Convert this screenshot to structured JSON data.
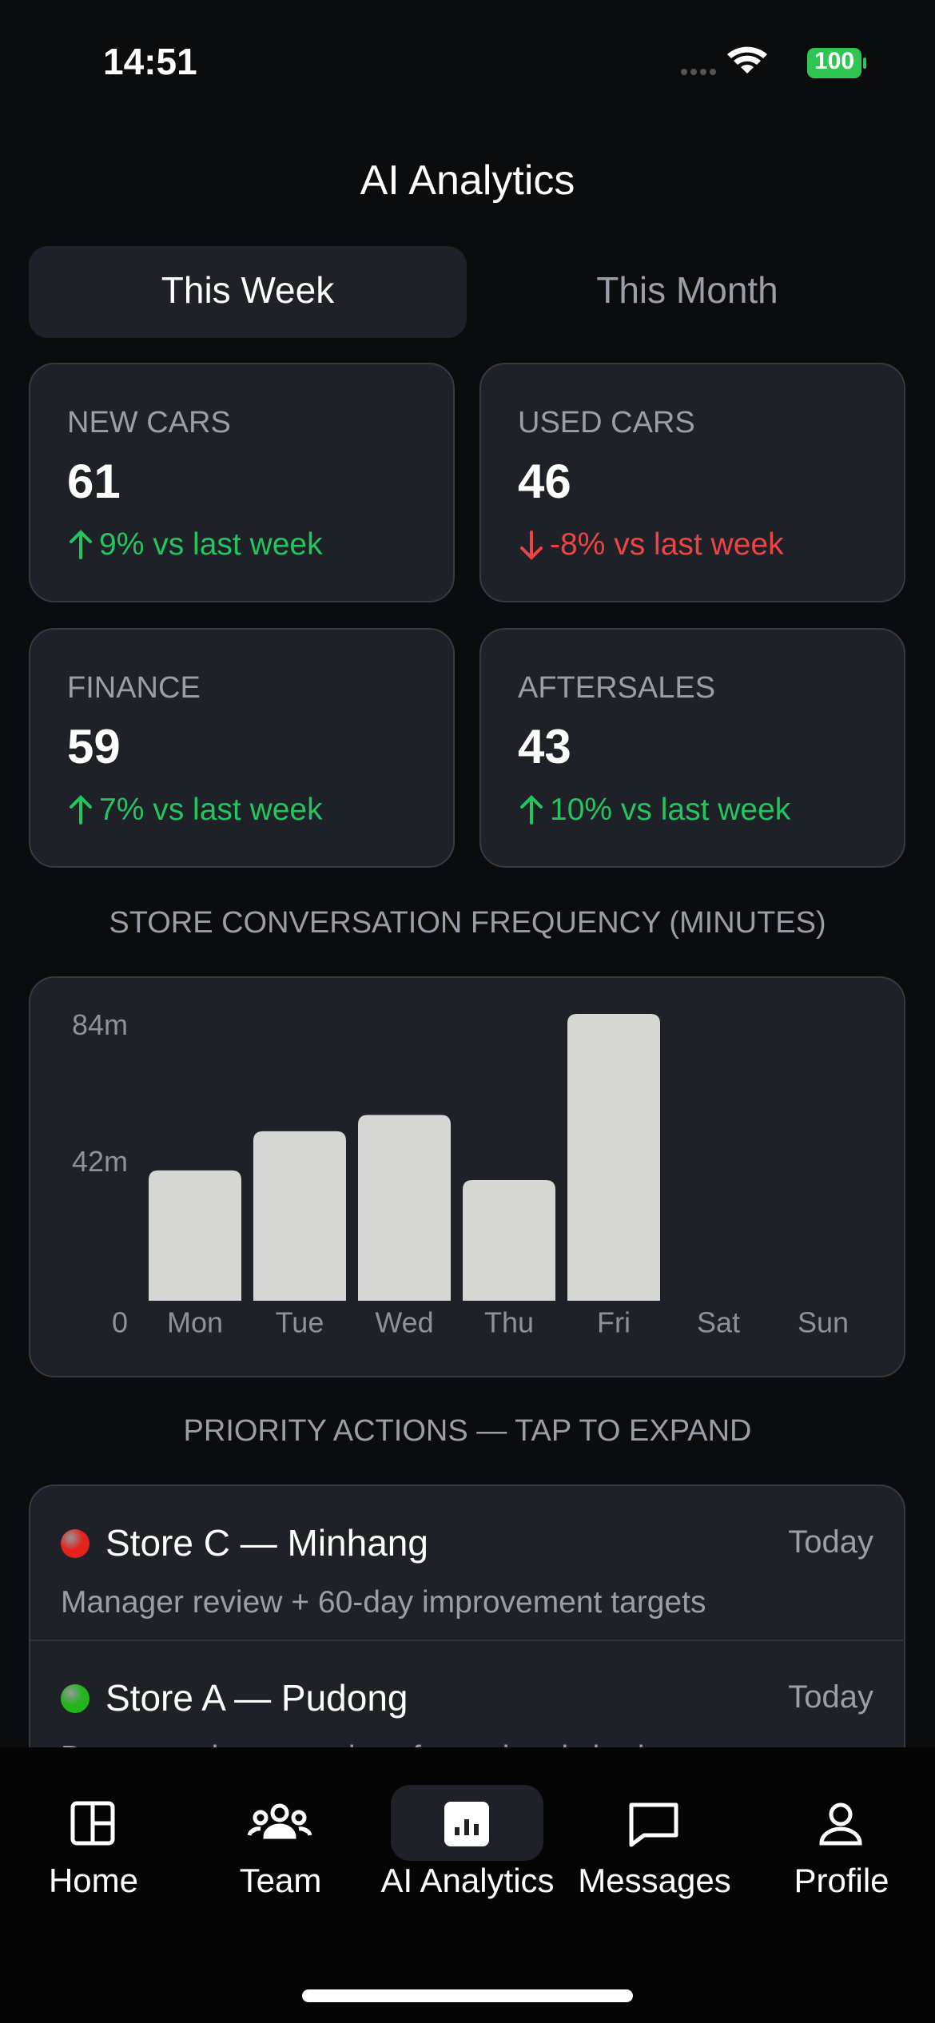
{
  "status_bar": {
    "time": "14:51",
    "battery": "100"
  },
  "header": {
    "title": "AI Analytics"
  },
  "tabs": [
    "This Week",
    "This Month"
  ],
  "kpis": [
    {
      "label": "NEW CARS",
      "value": "61",
      "delta": "9% vs last week"
    },
    {
      "label": "USED CARS",
      "value": "46",
      "delta": "-8% vs last week"
    },
    {
      "label": "FINANCE",
      "value": "59",
      "delta": "7% vs last week"
    },
    {
      "label": "AFTERSALES",
      "value": "43",
      "delta": "10% vs last week"
    }
  ],
  "chart_section": {
    "title": "STORE CONVERSATION FREQUENCY (MINUTES)"
  },
  "chart_data": {
    "type": "bar",
    "categories": [
      "Mon",
      "Tue",
      "Wed",
      "Thu",
      "Fri",
      "Sat",
      "Sun"
    ],
    "values": [
      40,
      52,
      57,
      37,
      88,
      null,
      null
    ],
    "color": "#d6d7d2",
    "ylim": [
      0,
      88
    ],
    "yticks": [
      0,
      {
        "value": 42,
        "label": "42m"
      },
      {
        "value": 84,
        "label": "84m"
      }
    ]
  },
  "actions_section": {
    "title": "PRIORITY ACTIONS — TAP TO EXPAND"
  },
  "actions": [
    {
      "title": "Store C — Minhang",
      "when": "Today",
      "detail": "Manager review + 60-day improvement targets",
      "status": "red"
    },
    {
      "title": "Store A — Pudong",
      "when": "Today",
      "detail": "Document best practices for regional sharing",
      "status": "green"
    }
  ],
  "nav": [
    "Home",
    "Team",
    "AI Analytics",
    "Messages",
    "Profile"
  ]
}
